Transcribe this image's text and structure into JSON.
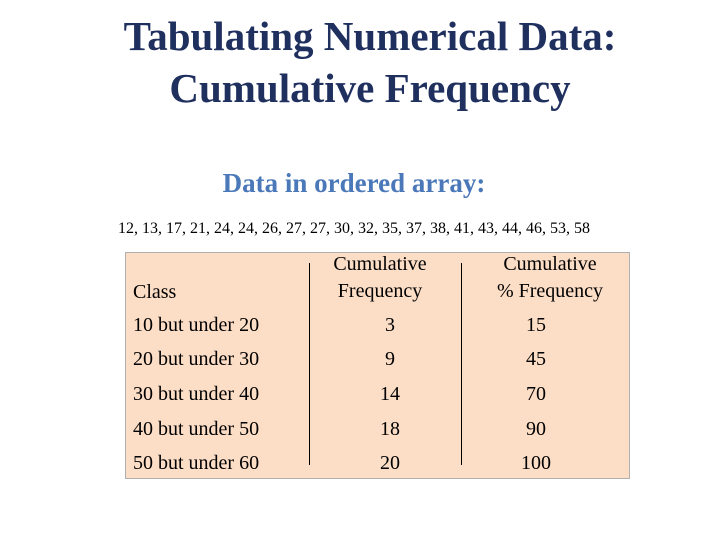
{
  "title": {
    "line1": "Tabulating Numerical Data:",
    "line2": "Cumulative Frequency"
  },
  "subtitle": "Data in ordered array:",
  "ordered_array": "12, 13, 17, 21, 24, 24, 26, 27, 27, 30, 32, 35, 37, 38, 41, 43, 44, 46, 53, 58",
  "table": {
    "headers": {
      "class": "Class",
      "cum_freq_line1": "Cumulative",
      "cum_freq_line2": "Frequency",
      "cum_pct_line1": "Cumulative",
      "cum_pct_line2": "% Frequency"
    },
    "rows": [
      {
        "class": "10 but under 20",
        "cum_freq": "3",
        "cum_pct": "15"
      },
      {
        "class": "20 but under 30",
        "cum_freq": "9",
        "cum_pct": "45"
      },
      {
        "class": "30 but under 40",
        "cum_freq": "14",
        "cum_pct": "70"
      },
      {
        "class": "40 but under 50",
        "cum_freq": "18",
        "cum_pct": "90"
      },
      {
        "class": "50 but under 60",
        "cum_freq": "20",
        "cum_pct": "100"
      }
    ]
  },
  "colors": {
    "title": "#1f2f5e",
    "subtitle": "#4a78b8",
    "table_background": "#fcddc6"
  }
}
